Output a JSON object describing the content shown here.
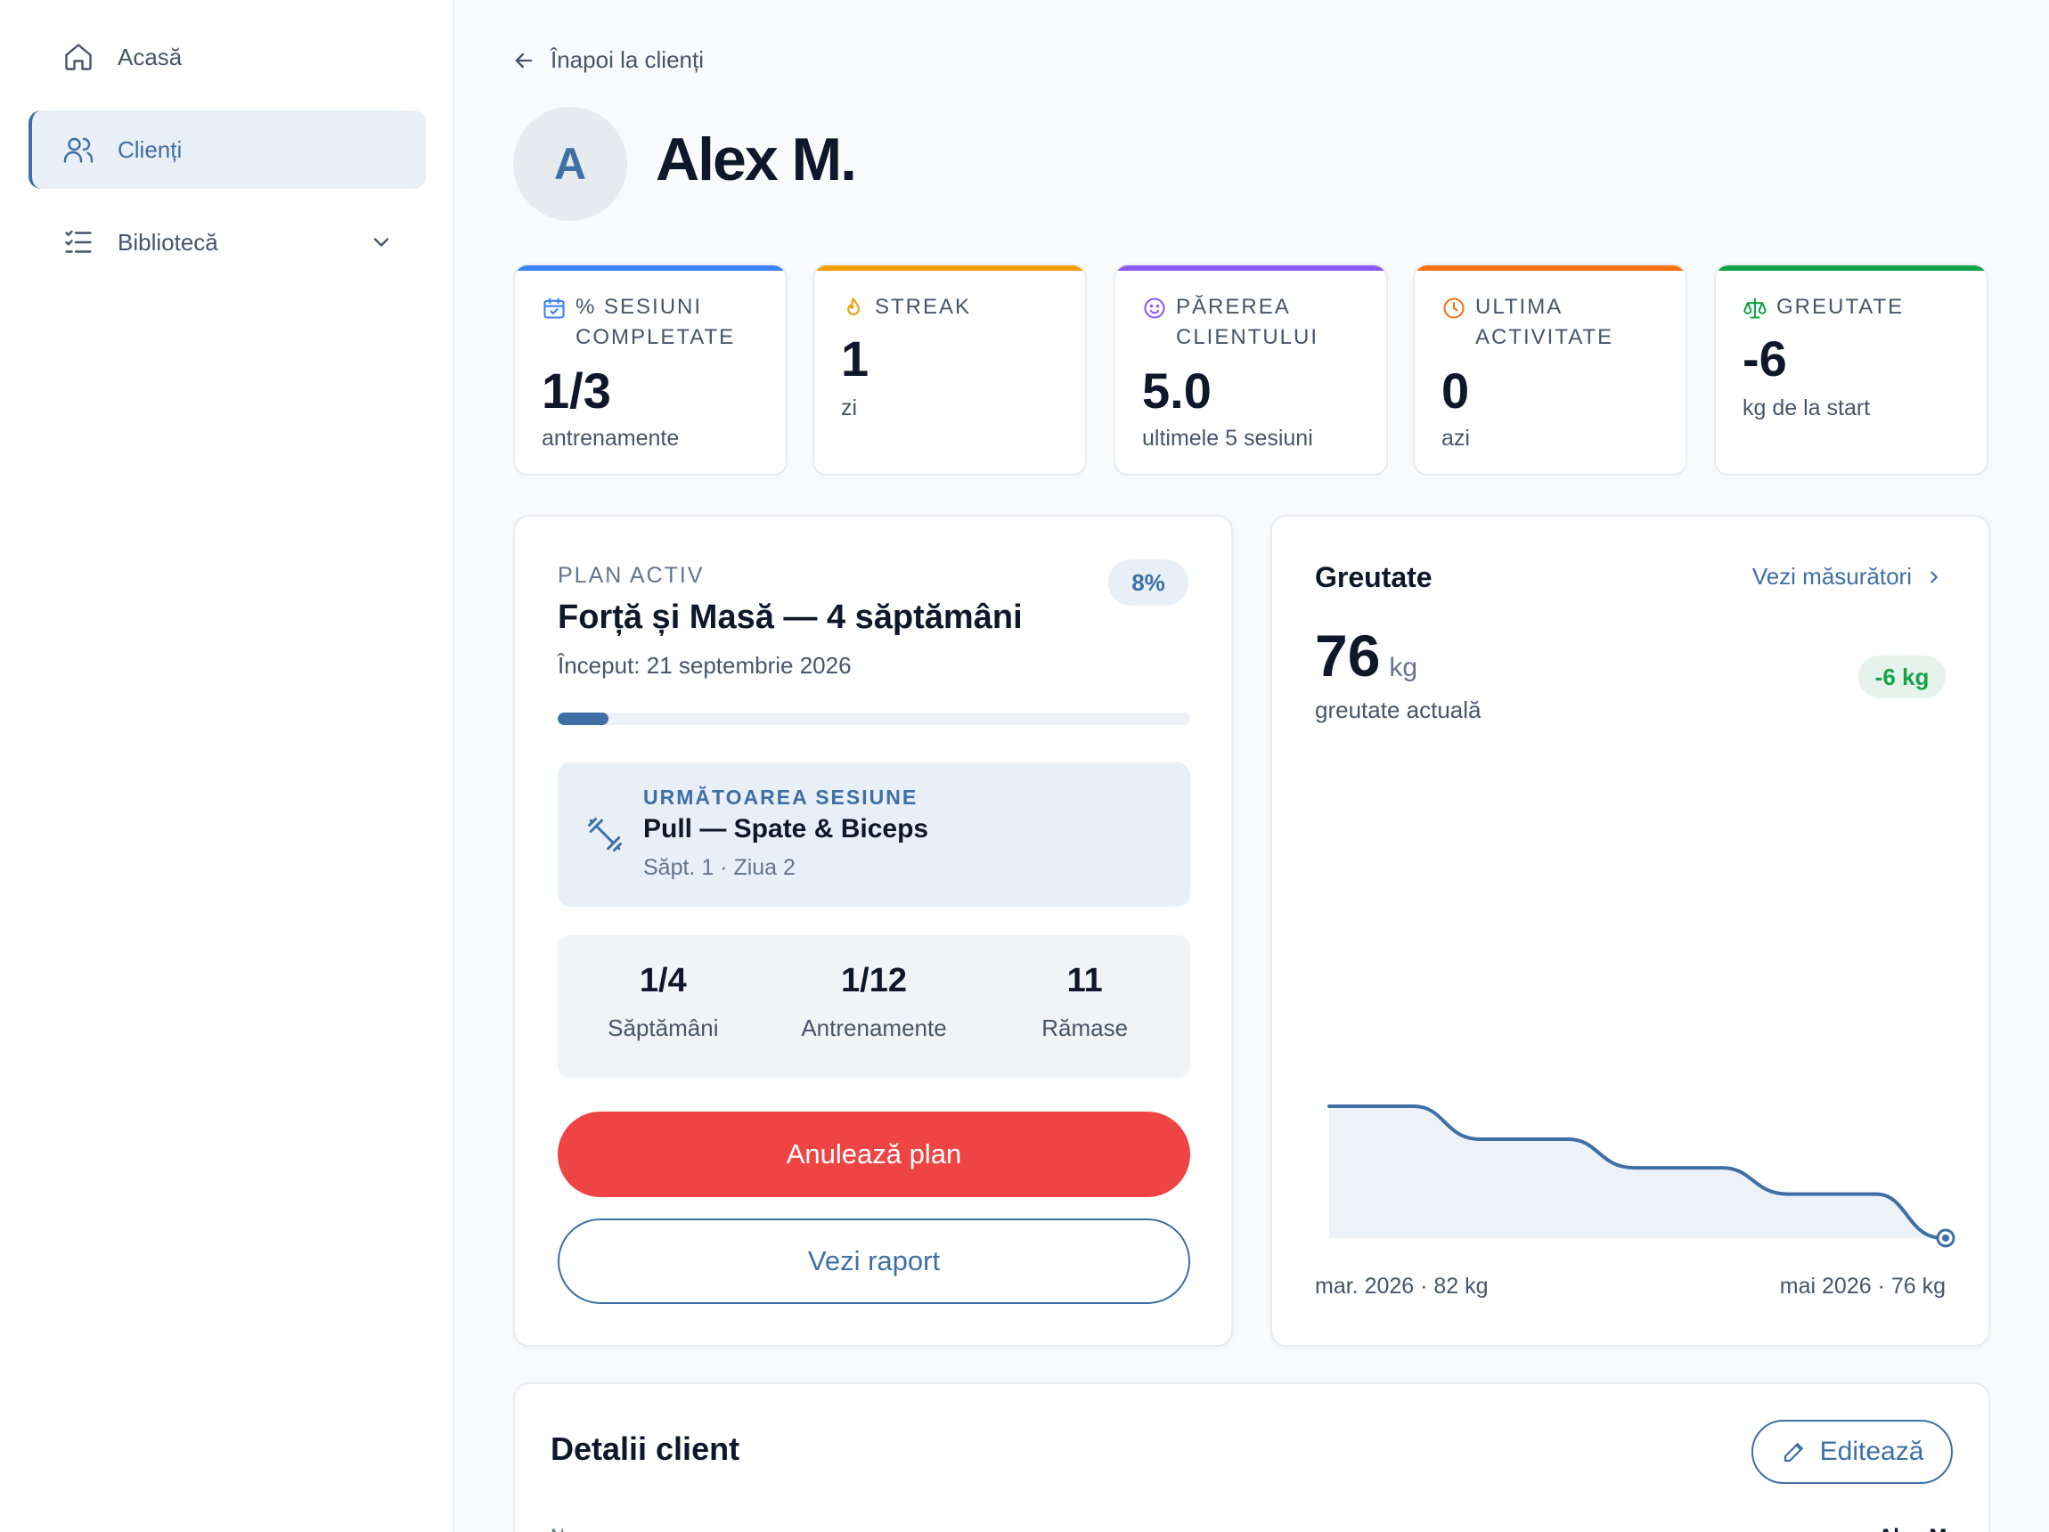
{
  "sidebar": {
    "items": [
      {
        "label": "Acasă",
        "icon": "home-icon"
      },
      {
        "label": "Clienți",
        "icon": "users-icon",
        "active": true
      },
      {
        "label": "Bibliotecă",
        "icon": "list-check-icon",
        "expandable": true
      }
    ]
  },
  "header": {
    "back_label": "Înapoi la clienți",
    "avatar_initial": "A",
    "client_name": "Alex M."
  },
  "stats": [
    {
      "label": "% Sesiuni completate",
      "value": "1/3",
      "sub": "antrenamente",
      "color": "#3b82f6",
      "icon": "calendar-check-icon"
    },
    {
      "label": "Streak",
      "value": "1",
      "sub": "zi",
      "color": "#f59e0b",
      "icon": "flame-icon"
    },
    {
      "label": "Părerea clientului",
      "value": "5.0",
      "sub": "ultimele 5 sesiuni",
      "color": "#8b5cf6",
      "icon": "smile-icon"
    },
    {
      "label": "Ultima activitate",
      "value": "0",
      "sub": "azi",
      "color": "#f97316",
      "icon": "clock-icon"
    },
    {
      "label": "Greutate",
      "value": "-6",
      "sub": "kg de la start",
      "color": "#16a34a",
      "icon": "scale-icon"
    }
  ],
  "plan": {
    "eyebrow": "PLAN ACTIV",
    "percent_label": "8%",
    "progress": 0.08,
    "title": "Forță și Masă — 4 săptămâni",
    "start": "Început: 21 septembrie 2026",
    "next_session": {
      "eyebrow": "URMĂTOAREA SESIUNE",
      "title": "Pull — Spate & Biceps",
      "sub": "Săpt. 1 · Ziua 2"
    },
    "stats": [
      {
        "value": "1/4",
        "label": "Săptămâni"
      },
      {
        "value": "1/12",
        "label": "Antrenamente"
      },
      {
        "value": "11",
        "label": "Rămase"
      }
    ],
    "cancel_label": "Anulează plan",
    "report_label": "Vezi raport"
  },
  "weight": {
    "title": "Greutate",
    "link_label": "Vezi măsurători",
    "current_value": "76",
    "unit": "kg",
    "caption": "greutate actuală",
    "delta": "-6 kg",
    "axis_start": "mar. 2026 · 82 kg",
    "axis_end": "mai 2026 · 76 kg",
    "accent": "#3f6fa5"
  },
  "chart_data": {
    "type": "area",
    "x": [
      "mar. 2026",
      "",
      "",
      "",
      "mai 2026"
    ],
    "values": [
      82,
      80.5,
      79.2,
      78,
      76
    ],
    "ylim": [
      76,
      82
    ],
    "grid": false
  },
  "details": {
    "title": "Detalii client",
    "edit_label": "Editează",
    "first_label": "Nume",
    "first_value": "Alex M."
  }
}
